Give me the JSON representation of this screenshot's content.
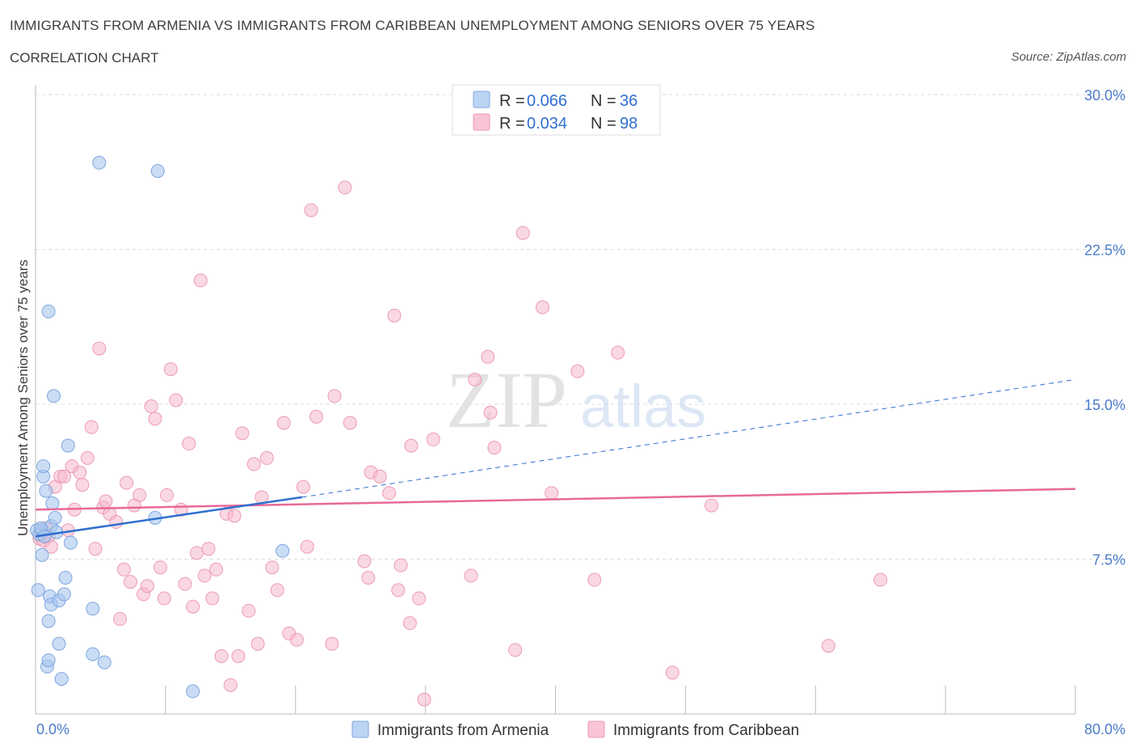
{
  "header": {
    "title": "IMMIGRANTS FROM ARMENIA VS IMMIGRANTS FROM CARIBBEAN UNEMPLOYMENT AMONG SENIORS OVER 75 YEARS",
    "subtitle": "CORRELATION CHART",
    "source": "Source: ZipAtlas.com"
  },
  "watermark": {
    "zip": "ZIP",
    "atlas": "atlas"
  },
  "legend": {
    "r_label": "R = ",
    "n_label": "N = ",
    "rows": [
      {
        "r": "0.066",
        "n": "36"
      },
      {
        "r": "0.034",
        "n": "98"
      }
    ]
  },
  "chart_data": {
    "type": "scatter",
    "title": "IMMIGRANTS FROM ARMENIA VS IMMIGRANTS FROM CARIBBEAN UNEMPLOYMENT AMONG SENIORS OVER 75 YEARS",
    "xlabel": "",
    "ylabel": "Unemployment Among Seniors over 75 years",
    "xlim": [
      0,
      80
    ],
    "ylim": [
      0,
      30
    ],
    "x_tick_labels": [
      "0.0%",
      "80.0%"
    ],
    "y_ticks": [
      7.5,
      15.0,
      22.5,
      30.0
    ],
    "y_tick_labels": [
      "7.5%",
      "15.0%",
      "22.5%",
      "30.0%"
    ],
    "grid": true,
    "legend_position": "top-center",
    "series": [
      {
        "name": "Immigrants from Armenia",
        "color": "#a9c6ee",
        "line_color": "#2f6fcf",
        "R": 0.066,
        "N": 36,
        "trend": {
          "x0": 0,
          "y0": 8.6,
          "x1": 20.5,
          "y1": 10.5,
          "dash_x1": 80,
          "dash_y1": 16.2
        },
        "points": [
          [
            0.1,
            8.9
          ],
          [
            0.3,
            8.7
          ],
          [
            0.5,
            7.7
          ],
          [
            0.5,
            8.9
          ],
          [
            0.6,
            11.5
          ],
          [
            0.6,
            12.0
          ],
          [
            0.8,
            10.8
          ],
          [
            0.9,
            2.3
          ],
          [
            1.0,
            2.6
          ],
          [
            1.0,
            4.5
          ],
          [
            1.0,
            19.5
          ],
          [
            1.1,
            5.7
          ],
          [
            1.2,
            5.3
          ],
          [
            1.2,
            9.1
          ],
          [
            1.3,
            10.2
          ],
          [
            1.4,
            15.4
          ],
          [
            1.5,
            9.5
          ],
          [
            1.6,
            8.8
          ],
          [
            1.8,
            5.5
          ],
          [
            1.8,
            3.4
          ],
          [
            2.0,
            1.7
          ],
          [
            2.2,
            5.8
          ],
          [
            2.3,
            6.6
          ],
          [
            2.5,
            13.0
          ],
          [
            2.7,
            8.3
          ],
          [
            4.4,
            5.1
          ],
          [
            4.4,
            2.9
          ],
          [
            4.9,
            26.7
          ],
          [
            5.3,
            2.5
          ],
          [
            9.2,
            9.5
          ],
          [
            9.4,
            26.3
          ],
          [
            12.1,
            1.1
          ],
          [
            19.0,
            7.9
          ],
          [
            0.2,
            6.0
          ],
          [
            0.4,
            9.0
          ],
          [
            0.7,
            8.6
          ]
        ]
      },
      {
        "name": "Immigrants from Caribbean",
        "color": "#f5b8cb",
        "line_color": "#e8689a",
        "R": 0.034,
        "N": 98,
        "trend": {
          "x0": 0,
          "y0": 9.9,
          "x1": 80,
          "y1": 10.9
        },
        "points": [
          [
            0.3,
            8.5
          ],
          [
            0.6,
            8.4
          ],
          [
            0.8,
            9.0
          ],
          [
            1.0,
            8.6
          ],
          [
            1.2,
            8.1
          ],
          [
            1.5,
            11.0
          ],
          [
            1.9,
            11.5
          ],
          [
            2.2,
            11.5
          ],
          [
            2.5,
            8.9
          ],
          [
            2.8,
            12.0
          ],
          [
            3.0,
            9.9
          ],
          [
            3.4,
            11.7
          ],
          [
            3.6,
            11.1
          ],
          [
            4.0,
            12.4
          ],
          [
            4.3,
            13.9
          ],
          [
            4.6,
            8.0
          ],
          [
            4.9,
            17.7
          ],
          [
            5.2,
            10.0
          ],
          [
            5.4,
            10.3
          ],
          [
            5.7,
            9.7
          ],
          [
            6.2,
            9.3
          ],
          [
            6.5,
            4.6
          ],
          [
            6.8,
            7.0
          ],
          [
            7.0,
            11.2
          ],
          [
            7.3,
            6.4
          ],
          [
            7.6,
            10.1
          ],
          [
            8.0,
            10.6
          ],
          [
            8.3,
            5.8
          ],
          [
            8.6,
            6.2
          ],
          [
            8.9,
            14.9
          ],
          [
            9.2,
            14.3
          ],
          [
            9.6,
            7.1
          ],
          [
            9.9,
            5.6
          ],
          [
            10.1,
            10.6
          ],
          [
            10.4,
            16.7
          ],
          [
            10.8,
            15.2
          ],
          [
            11.2,
            9.9
          ],
          [
            11.5,
            6.3
          ],
          [
            11.8,
            13.1
          ],
          [
            12.1,
            5.2
          ],
          [
            12.4,
            7.8
          ],
          [
            12.7,
            21.0
          ],
          [
            13.0,
            6.7
          ],
          [
            13.3,
            8.0
          ],
          [
            13.6,
            5.6
          ],
          [
            13.9,
            7.0
          ],
          [
            14.3,
            2.8
          ],
          [
            14.7,
            9.7
          ],
          [
            15.0,
            1.4
          ],
          [
            15.3,
            9.6
          ],
          [
            15.6,
            2.8
          ],
          [
            15.9,
            13.6
          ],
          [
            16.4,
            5.0
          ],
          [
            16.8,
            12.1
          ],
          [
            17.1,
            3.4
          ],
          [
            17.4,
            10.5
          ],
          [
            17.8,
            12.4
          ],
          [
            18.2,
            7.1
          ],
          [
            18.6,
            6.0
          ],
          [
            19.1,
            14.1
          ],
          [
            19.5,
            3.9
          ],
          [
            20.1,
            3.6
          ],
          [
            20.6,
            11.0
          ],
          [
            20.9,
            8.1
          ],
          [
            21.2,
            24.4
          ],
          [
            21.6,
            14.4
          ],
          [
            22.8,
            3.4
          ],
          [
            23.0,
            15.4
          ],
          [
            23.8,
            25.5
          ],
          [
            24.2,
            14.1
          ],
          [
            25.3,
            7.4
          ],
          [
            25.6,
            6.6
          ],
          [
            25.8,
            11.7
          ],
          [
            26.5,
            11.5
          ],
          [
            27.2,
            10.7
          ],
          [
            27.6,
            19.3
          ],
          [
            27.9,
            6.0
          ],
          [
            28.1,
            7.2
          ],
          [
            28.8,
            4.4
          ],
          [
            28.9,
            13.0
          ],
          [
            29.5,
            5.6
          ],
          [
            29.9,
            0.7
          ],
          [
            30.6,
            13.3
          ],
          [
            33.5,
            6.7
          ],
          [
            33.8,
            16.2
          ],
          [
            34.8,
            17.3
          ],
          [
            35.0,
            14.6
          ],
          [
            35.3,
            12.9
          ],
          [
            36.9,
            3.1
          ],
          [
            37.5,
            23.3
          ],
          [
            39.0,
            19.7
          ],
          [
            39.7,
            10.7
          ],
          [
            41.7,
            16.6
          ],
          [
            43.0,
            6.5
          ],
          [
            44.8,
            17.5
          ],
          [
            49.0,
            2.0
          ],
          [
            52.0,
            10.1
          ],
          [
            61.0,
            3.3
          ],
          [
            65.0,
            6.5
          ]
        ]
      }
    ]
  },
  "bottom_legend": {
    "items": [
      {
        "label": "Immigrants from Armenia"
      },
      {
        "label": "Immigrants from Caribbean"
      }
    ]
  }
}
